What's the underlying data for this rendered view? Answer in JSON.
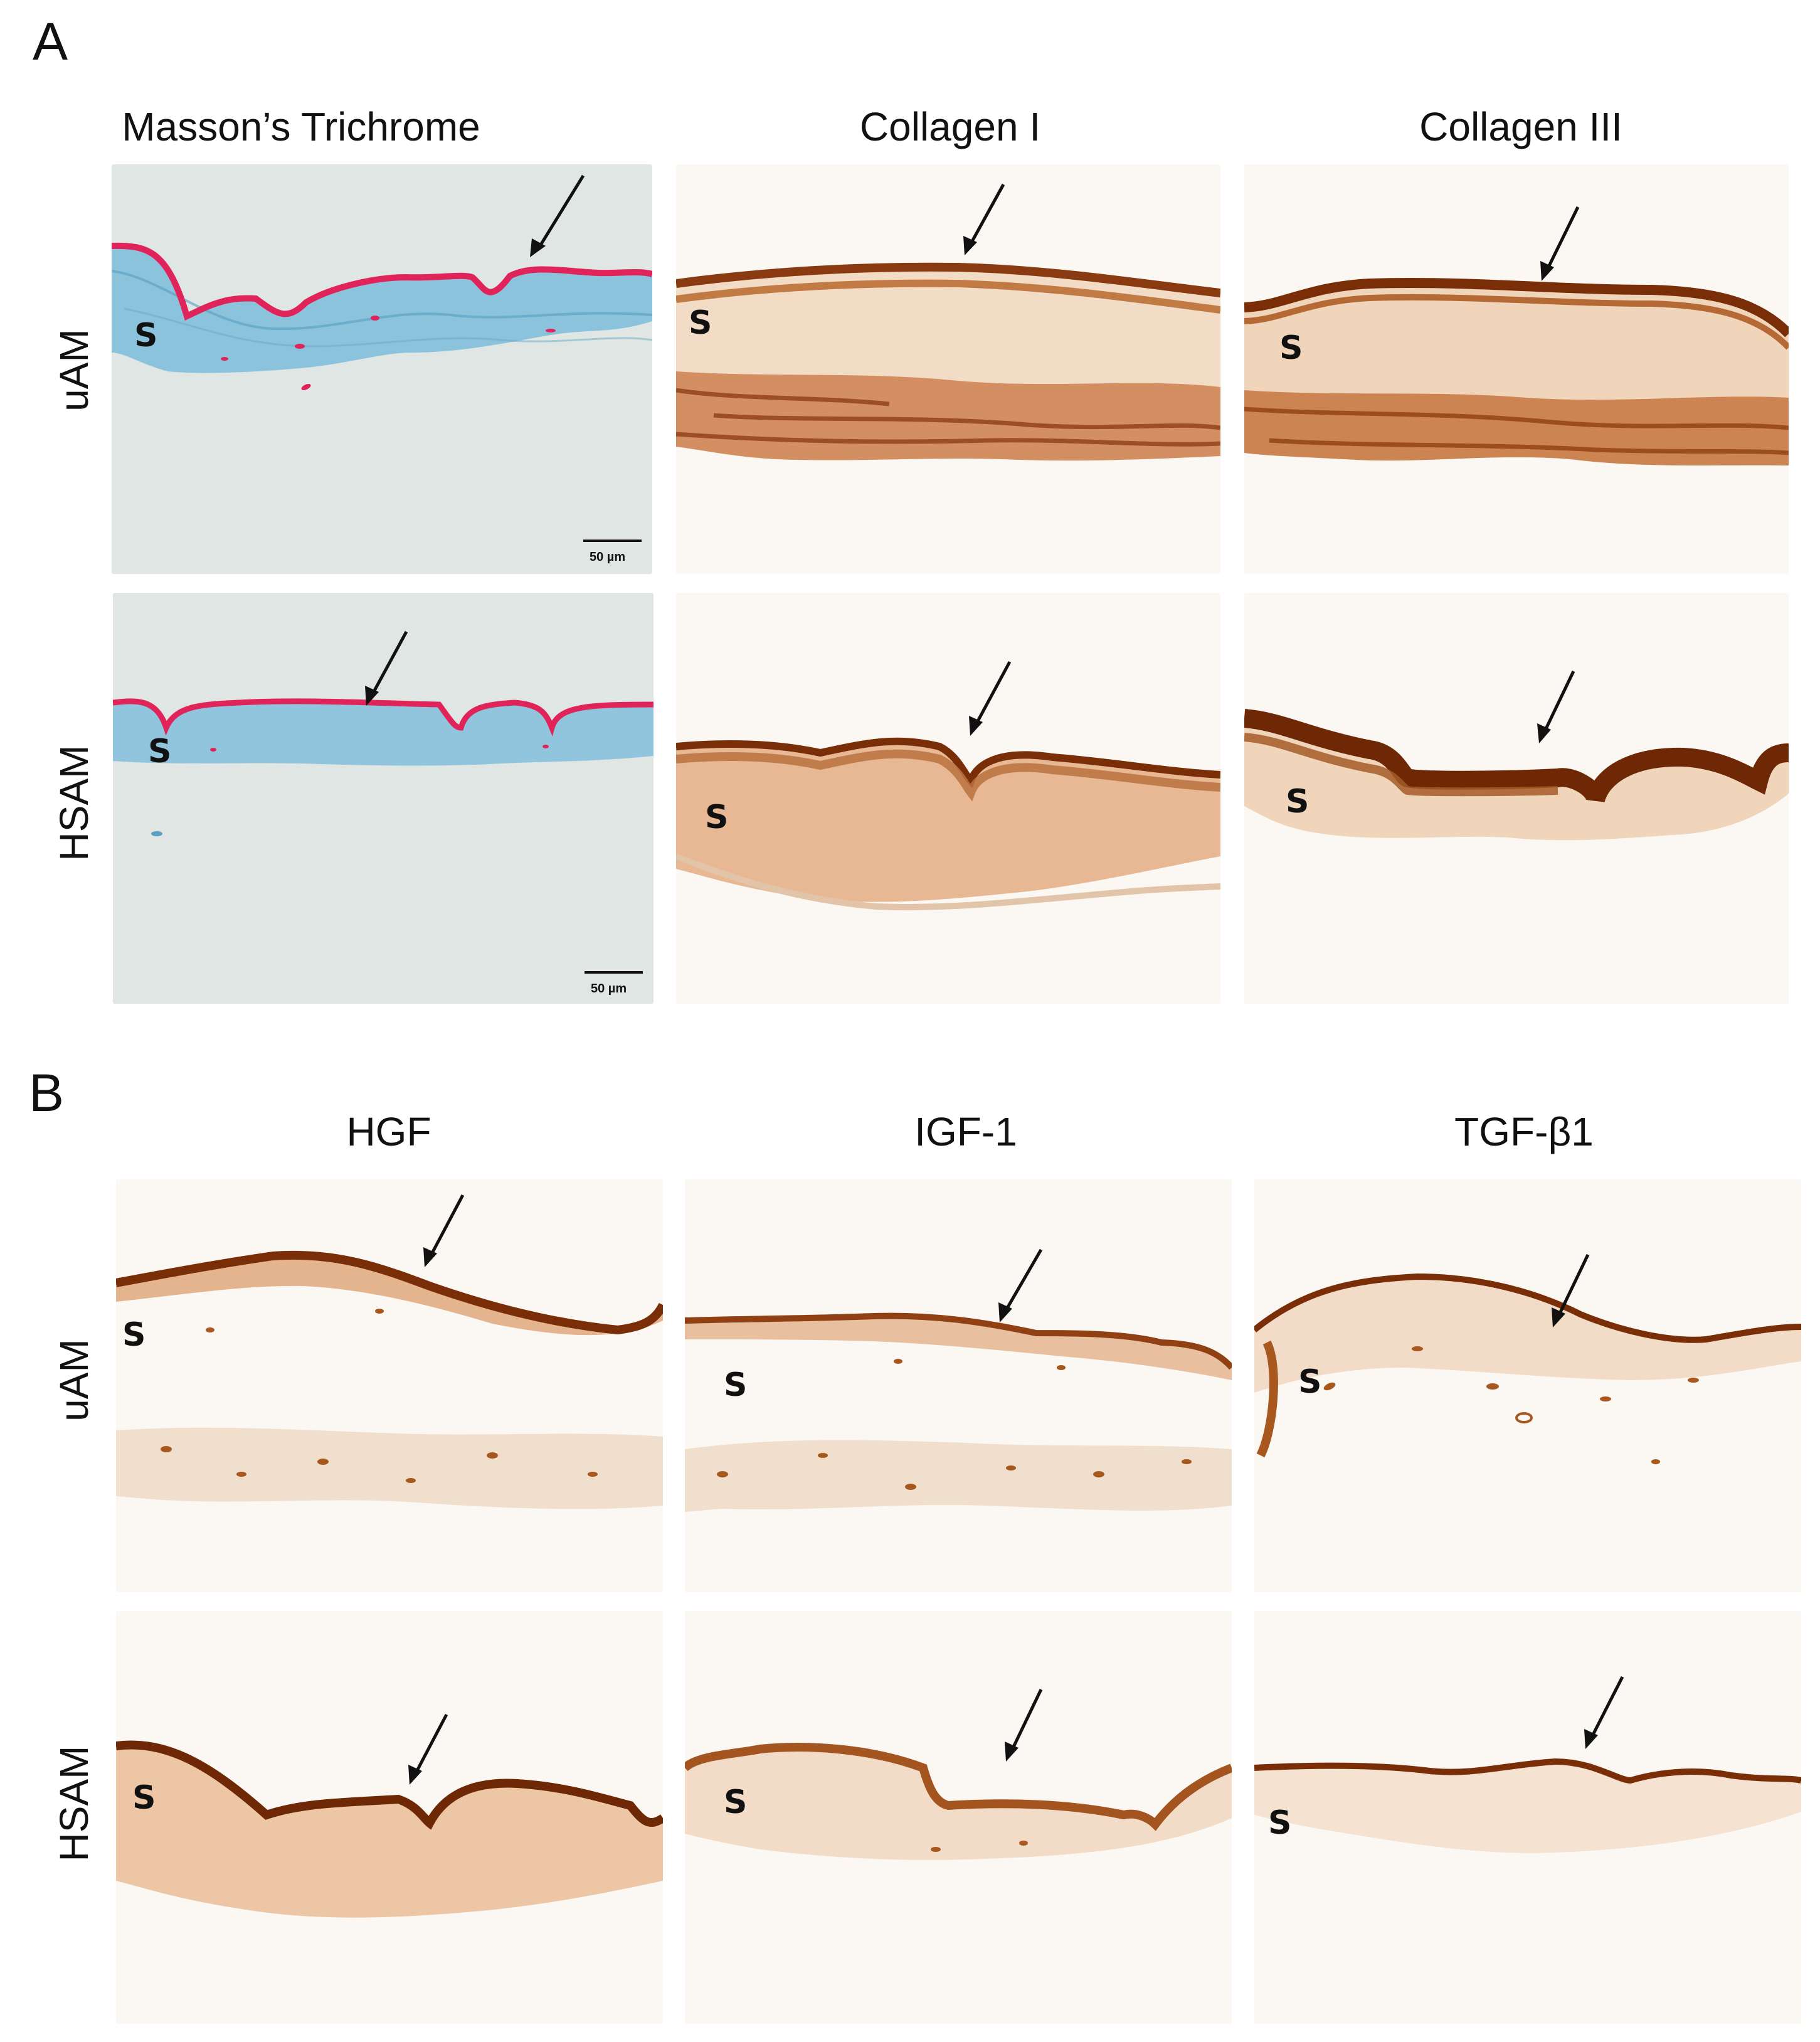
{
  "panels": [
    {
      "letter": "A",
      "columns": [
        "Masson’s Trichrome",
        "Collagen I",
        "Collagen III"
      ],
      "rows": [
        "uAM",
        "HSAM"
      ],
      "stroma_marker": "S",
      "scale_bar": "50 µm"
    },
    {
      "letter": "B",
      "columns": [
        "HGF",
        "IGF-1",
        "TGF-β1"
      ],
      "rows": [
        "uAM",
        "HSAM"
      ],
      "stroma_marker": "S"
    }
  ],
  "colors": {
    "trichrome_background": "#dfe6e3",
    "trichrome_blue": "#77b7d6",
    "trichrome_red": "#e0245a",
    "ihc_background": "#fbf8f4",
    "dab_dark": "#8a3a10",
    "dab_light": "#e2b48d"
  }
}
